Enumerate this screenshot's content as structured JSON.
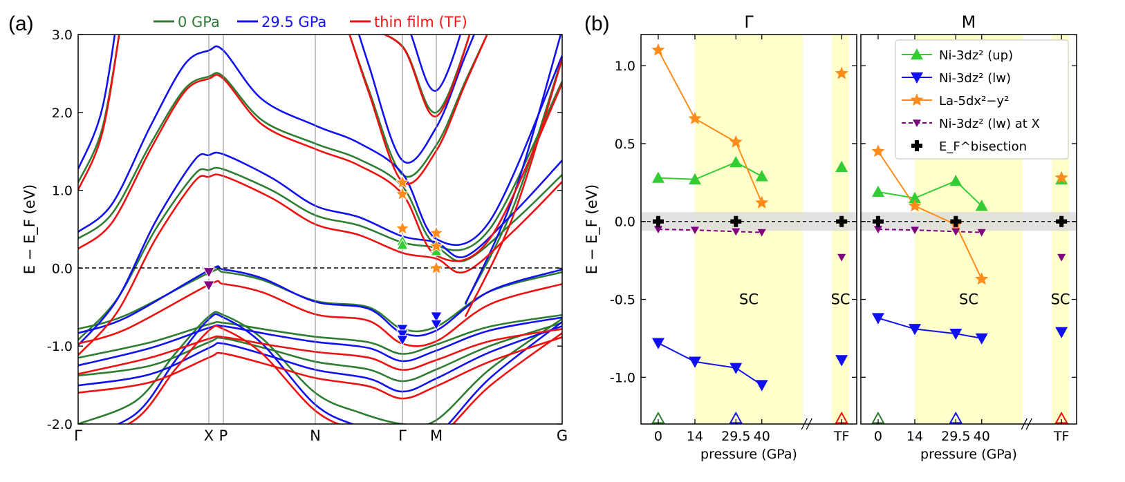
{
  "chart_data": [
    {
      "panel_label": "(a)",
      "type": "line",
      "legend": [
        "0 GPa",
        "29.5 GPa",
        "thin film (TF)"
      ],
      "series_colors": [
        "#2e7d32",
        "#1212ee",
        "#ee1111"
      ],
      "ylabel": "E − E_F (eV)",
      "ylim": [
        -2.0,
        3.0
      ],
      "y_ticks": [
        "-2.0",
        "-1.0",
        "0.0",
        "1.0",
        "2.0",
        "3.0"
      ],
      "kpath": [
        "Γ",
        "X",
        "P",
        "N",
        "Γ",
        "M",
        "G"
      ],
      "kpath_pos": [
        0,
        0.27,
        0.3,
        0.49,
        0.67,
        0.74,
        1.0
      ]
    },
    {
      "panel_label": "(b)",
      "type": "line",
      "ylabel": "E − E_F (eV)",
      "ylim": [
        -1.3,
        1.2
      ],
      "y_ticks": [
        "-1.0",
        "-0.5",
        "0.0",
        "0.5",
        "1.0"
      ],
      "xlabel": "pressure (GPa)",
      "x_ticks": [
        "0",
        "14",
        "29.5",
        "40",
        "TF"
      ],
      "sc_label": "SC",
      "subpanels": [
        {
          "title": "Γ",
          "pressure": [
            0,
            14,
            29.5,
            40
          ],
          "ni_up": [
            0.28,
            0.27,
            0.38,
            0.29
          ],
          "ni_lw": [
            -0.78,
            -0.9,
            -0.94,
            -1.05
          ],
          "la": [
            1.1,
            0.66,
            0.51,
            0.12
          ],
          "ni_lw_x": [
            -0.05,
            -0.055,
            -0.065,
            -0.07
          ],
          "ef": [
            0,
            0
          ],
          "tf": {
            "ni_up": 0.35,
            "ni_lw": -0.89,
            "la": 0.95,
            "ni_lw_x": -0.23,
            "ef": 0
          }
        },
        {
          "title": "M",
          "pressure": [
            0,
            14,
            29.5,
            40
          ],
          "ni_up": [
            0.19,
            0.15,
            0.26,
            0.1
          ],
          "ni_lw": [
            -0.62,
            -0.69,
            -0.72,
            -0.75
          ],
          "la": [
            0.45,
            0.1,
            -0.02,
            -0.37
          ],
          "ni_lw_x": [
            -0.05,
            -0.055,
            -0.065,
            -0.07
          ],
          "ef": [
            0,
            0
          ],
          "tf": {
            "ni_up": 0.27,
            "ni_lw": -0.71,
            "la": 0.28,
            "ni_lw_x": -0.23,
            "ef": 0
          }
        }
      ],
      "legend": [
        {
          "label": "Ni-3dz² (up)",
          "color": "#33cc33",
          "marker": "triangle-up"
        },
        {
          "label": "Ni-3dz² (lw)",
          "color": "#1010ee",
          "marker": "triangle-down"
        },
        {
          "label": "La-5dx²−y²",
          "color": "#ff8c1a",
          "marker": "star"
        },
        {
          "label": "Ni-3dz² (lw) at X",
          "color": "#800080",
          "marker": "triangle-down-dashed"
        },
        {
          "label": "E_F^bisection",
          "color": "#000000",
          "marker": "plus"
        }
      ]
    }
  ]
}
